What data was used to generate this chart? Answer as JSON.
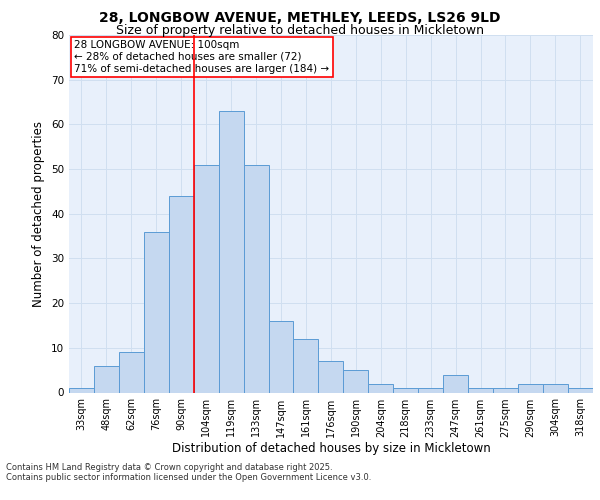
{
  "title_line1": "28, LONGBOW AVENUE, METHLEY, LEEDS, LS26 9LD",
  "title_line2": "Size of property relative to detached houses in Mickletown",
  "xlabel": "Distribution of detached houses by size in Mickletown",
  "ylabel": "Number of detached properties",
  "categories": [
    "33sqm",
    "48sqm",
    "62sqm",
    "76sqm",
    "90sqm",
    "104sqm",
    "119sqm",
    "133sqm",
    "147sqm",
    "161sqm",
    "176sqm",
    "190sqm",
    "204sqm",
    "218sqm",
    "233sqm",
    "247sqm",
    "261sqm",
    "275sqm",
    "290sqm",
    "304sqm",
    "318sqm"
  ],
  "values": [
    1,
    6,
    9,
    36,
    44,
    51,
    63,
    51,
    16,
    12,
    7,
    5,
    2,
    1,
    1,
    4,
    1,
    1,
    2,
    2,
    1
  ],
  "bar_color": "#c5d8f0",
  "bar_edge_color": "#5b9bd5",
  "grid_color": "#d0dff0",
  "background_color": "#e8f0fb",
  "red_line_index": 4.5,
  "annotation_text": "28 LONGBOW AVENUE: 100sqm\n← 28% of detached houses are smaller (72)\n71% of semi-detached houses are larger (184) →",
  "annotation_box_color": "white",
  "annotation_box_edge": "red",
  "red_line_color": "red",
  "ylim": [
    0,
    80
  ],
  "yticks": [
    0,
    10,
    20,
    30,
    40,
    50,
    60,
    70,
    80
  ],
  "footer_text": "Contains HM Land Registry data © Crown copyright and database right 2025.\nContains public sector information licensed under the Open Government Licence v3.0.",
  "title_fontsize": 10,
  "subtitle_fontsize": 9,
  "axis_label_fontsize": 8.5,
  "tick_fontsize": 7,
  "annotation_fontsize": 7.5,
  "footer_fontsize": 6
}
